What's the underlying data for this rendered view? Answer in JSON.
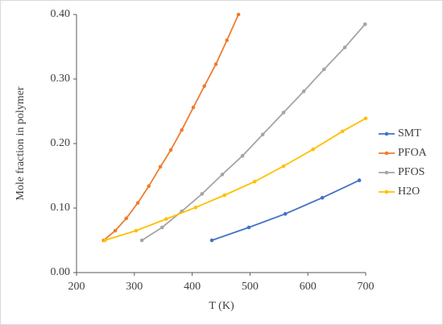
{
  "chart_data": {
    "type": "line",
    "x_label": "T (K)",
    "y_label": "Mole fraction in polymer",
    "xlim": [
      200,
      700
    ],
    "xticks": [
      200,
      300,
      400,
      500,
      600,
      700
    ],
    "ylim": [
      0,
      0.4
    ],
    "yticks": [
      {
        "value": 0,
        "label": "0.00"
      },
      {
        "value": 0.1,
        "label": "0.10"
      },
      {
        "value": 0.2,
        "label": "0.20"
      },
      {
        "value": 0.3,
        "label": "0.30"
      },
      {
        "value": 0.4,
        "label": "0.40"
      }
    ],
    "grid": false,
    "legend": "right",
    "series": [
      {
        "name": "SMT",
        "color": "#4472c4",
        "x": [
          434,
          498,
          561,
          625,
          689
        ],
        "values": [
          0.05,
          0.07,
          0.091,
          0.116,
          0.143
        ]
      },
      {
        "name": "PFOA",
        "color": "#ed7d31",
        "x": [
          247,
          267,
          286,
          306,
          325,
          345,
          363,
          382,
          402,
          421,
          441,
          460,
          480
        ],
        "values": [
          0.05,
          0.065,
          0.084,
          0.108,
          0.134,
          0.164,
          0.19,
          0.221,
          0.256,
          0.289,
          0.323,
          0.36,
          0.4
        ]
      },
      {
        "name": "PFOS",
        "color": "#a5a5a5",
        "x": [
          313,
          348,
          382,
          417,
          452,
          487,
          522,
          558,
          593,
          628,
          664,
          699
        ],
        "values": [
          0.05,
          0.07,
          0.095,
          0.122,
          0.152,
          0.181,
          0.214,
          0.248,
          0.281,
          0.315,
          0.349,
          0.385
        ]
      },
      {
        "name": "H2O",
        "color": "#ffc000",
        "x": [
          249,
          303,
          355,
          406,
          456,
          508,
          558,
          609,
          660,
          700
        ],
        "values": [
          0.05,
          0.065,
          0.083,
          0.101,
          0.12,
          0.141,
          0.165,
          0.191,
          0.219,
          0.239
        ]
      }
    ]
  }
}
